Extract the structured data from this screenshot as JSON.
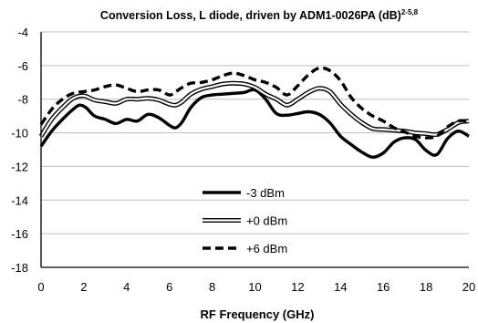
{
  "chart_data": {
    "type": "line",
    "title": "Conversion Loss, L diode, driven by ADM1-0026PA (dB)",
    "title_superscript": "2-5,8",
    "xlabel": "RF Frequency (GHz)",
    "ylabel": "",
    "xlim": [
      0,
      20
    ],
    "ylim": [
      -18,
      -4
    ],
    "x_ticks": [
      0,
      2,
      4,
      6,
      8,
      10,
      12,
      14,
      16,
      18,
      20
    ],
    "y_ticks": [
      -4,
      -6,
      -8,
      -10,
      -12,
      -14,
      -16,
      -18
    ],
    "grid": {
      "horizontal": true,
      "vertical": false
    },
    "legend_position": "bottom-center",
    "series": [
      {
        "name": "-3 dBm",
        "style": "solid-thick",
        "color": "#000000",
        "x": [
          0,
          0.5,
          1,
          1.5,
          1.8,
          2.1,
          2.5,
          3,
          3.5,
          4,
          4.5,
          5,
          5.5,
          6,
          6.3,
          6.6,
          7,
          7.5,
          8,
          8.5,
          9,
          9.5,
          10,
          10.5,
          11,
          11.5,
          12,
          12.5,
          13,
          13.5,
          14,
          14.5,
          15,
          15.5,
          16,
          16.5,
          17,
          17.5,
          18,
          18.5,
          19,
          19.5,
          20
        ],
        "values": [
          -10.8,
          -9.9,
          -9.2,
          -8.6,
          -8.35,
          -8.5,
          -9.0,
          -9.2,
          -9.45,
          -9.2,
          -9.3,
          -8.9,
          -9.1,
          -9.55,
          -9.7,
          -9.35,
          -8.5,
          -7.9,
          -7.75,
          -7.7,
          -7.65,
          -7.6,
          -7.45,
          -8.0,
          -8.85,
          -8.95,
          -8.85,
          -8.75,
          -8.9,
          -9.4,
          -10.2,
          -10.7,
          -11.15,
          -11.45,
          -11.2,
          -10.55,
          -10.3,
          -10.4,
          -11.05,
          -11.3,
          -10.35,
          -9.9,
          -10.2
        ]
      },
      {
        "name": "+0 dBm",
        "style": "double-outline",
        "color": "#000000",
        "x": [
          0,
          0.5,
          1,
          1.5,
          2,
          2.5,
          3,
          3.5,
          4,
          4.5,
          5,
          5.5,
          6,
          6.3,
          6.6,
          7,
          7.5,
          8,
          8.5,
          9,
          9.5,
          10,
          10.5,
          11,
          11.5,
          12,
          12.5,
          13,
          13.5,
          14,
          14.5,
          15,
          15.5,
          16,
          16.5,
          17,
          17.5,
          18,
          18.5,
          19,
          19.5,
          20
        ],
        "values": [
          -10.2,
          -9.2,
          -8.5,
          -7.95,
          -7.8,
          -8.05,
          -8.15,
          -8.25,
          -8.0,
          -8.0,
          -7.95,
          -8.05,
          -8.3,
          -8.35,
          -8.15,
          -7.7,
          -7.4,
          -7.25,
          -7.1,
          -7.05,
          -7.1,
          -7.3,
          -7.7,
          -8.0,
          -8.35,
          -8.0,
          -7.6,
          -7.35,
          -7.55,
          -8.3,
          -8.9,
          -9.4,
          -9.75,
          -9.8,
          -9.85,
          -9.9,
          -10.0,
          -10.05,
          -10.1,
          -9.8,
          -9.4,
          -9.3
        ]
      },
      {
        "name": "+6 dBm",
        "style": "dashed-thick",
        "color": "#000000",
        "x": [
          0,
          0.5,
          1,
          1.5,
          2,
          2.5,
          3,
          3.5,
          4,
          4.5,
          5,
          5.5,
          6,
          6.3,
          6.6,
          7,
          7.5,
          8,
          8.5,
          9,
          9.5,
          10,
          10.5,
          11,
          11.5,
          12,
          12.5,
          13,
          13.5,
          14,
          14.5,
          15,
          15.5,
          16,
          16.5,
          17,
          17.5,
          18,
          18.5,
          19,
          19.5,
          20
        ],
        "values": [
          -9.5,
          -8.6,
          -8.0,
          -7.65,
          -7.55,
          -7.45,
          -7.25,
          -7.15,
          -7.35,
          -7.55,
          -7.45,
          -7.45,
          -7.75,
          -7.55,
          -7.3,
          -7.05,
          -7.0,
          -6.85,
          -6.6,
          -6.45,
          -6.6,
          -6.85,
          -7.0,
          -7.3,
          -7.75,
          -7.2,
          -6.55,
          -6.15,
          -6.3,
          -6.9,
          -7.9,
          -8.55,
          -9.0,
          -9.3,
          -9.7,
          -9.95,
          -10.2,
          -10.3,
          -10.2,
          -9.65,
          -9.3,
          -9.3
        ]
      }
    ]
  }
}
